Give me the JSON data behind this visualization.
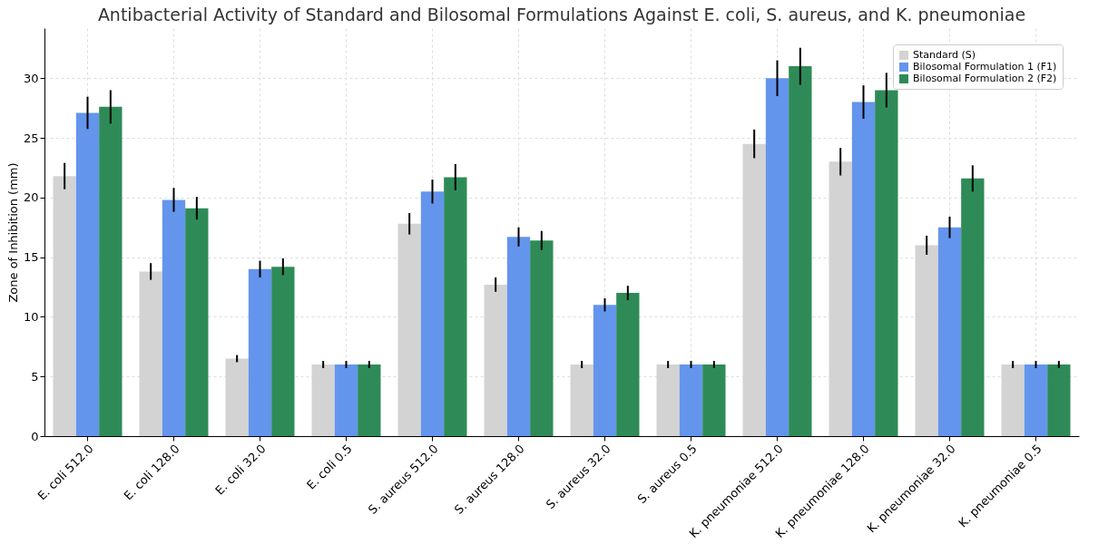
{
  "chart_data": {
    "type": "bar",
    "title": "Antibacterial Activity of Standard and Bilosomal Formulations Against E. coli, S. aureus, and K. pneumoniae",
    "ylabel": "Zone of Inhibition (mm)",
    "categories": [
      "E. coli 512.0",
      "E. coli 128.0",
      "E. coli 32.0",
      "E. coli 0.5",
      "S. aureus 512.0",
      "S. aureus 128.0",
      "S. aureus 32.0",
      "S. aureus 0.5",
      "K. pneumoniae 512.0",
      "K. pneumoniae 128.0",
      "K. pneumoniae 32.0",
      "K. pneumoniae 0.5"
    ],
    "series": [
      {
        "name": "Standard (S)",
        "color": "#d3d3d3",
        "values": [
          21.8,
          13.8,
          6.5,
          6,
          17.8,
          12.7,
          6,
          6,
          24.5,
          23,
          16,
          6
        ],
        "errors": [
          1.1,
          0.7,
          0.3,
          0.3,
          0.9,
          0.6,
          0.3,
          0.3,
          1.2,
          1.15,
          0.8,
          0.3
        ]
      },
      {
        "name": "Bilosomal Formulation 1 (F1)",
        "color": "#6495ed",
        "values": [
          27.1,
          19.8,
          14,
          6,
          20.5,
          16.7,
          11,
          6,
          30,
          28,
          17.5,
          6
        ],
        "errors": [
          1.35,
          1,
          0.7,
          0.3,
          1,
          0.8,
          0.55,
          0.3,
          1.5,
          1.4,
          0.9,
          0.3
        ]
      },
      {
        "name": "Bilosomal Formulation 2 (F2)",
        "color": "#2e8b57",
        "values": [
          27.6,
          19.1,
          14.2,
          6,
          21.7,
          16.4,
          12,
          6,
          31,
          29,
          21.6,
          6
        ],
        "errors": [
          1.4,
          0.95,
          0.7,
          0.3,
          1.1,
          0.8,
          0.6,
          0.3,
          1.55,
          1.45,
          1.1,
          0.3
        ]
      }
    ],
    "ylim": [
      0,
      34.2
    ],
    "yticks": [
      0,
      5,
      10,
      15,
      20,
      25,
      30
    ],
    "grid": true,
    "legend": "top right"
  }
}
